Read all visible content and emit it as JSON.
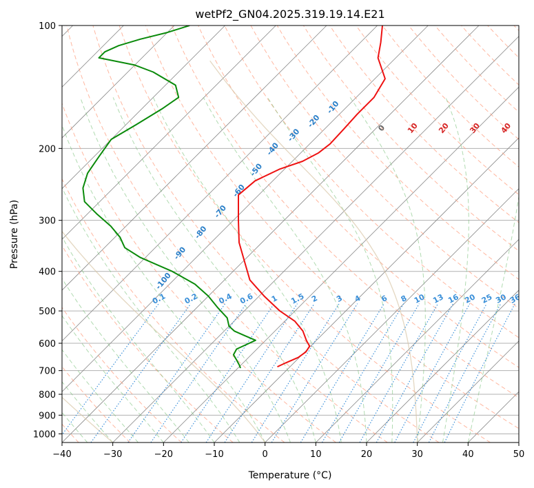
{
  "chart_data": {
    "type": "skewt",
    "title": "wetPf2_GN04.2025.319.19.14.E21",
    "xlabel": "Temperature (°C)",
    "ylabel": "Pressure (hPa)",
    "xlim": [
      -40,
      50
    ],
    "ylim": [
      1050,
      100
    ],
    "x_ticks": [
      -40,
      -30,
      -20,
      -10,
      0,
      10,
      20,
      30,
      40,
      50
    ],
    "x_tick_labels": [
      "−40",
      "−30",
      "−20",
      "−10",
      "0",
      "10",
      "20",
      "30",
      "40",
      "50"
    ],
    "y_ticks": [
      100,
      200,
      300,
      400,
      500,
      600,
      700,
      800,
      900,
      1000
    ],
    "y_tick_labels": [
      "100",
      "200",
      "300",
      "400",
      "500",
      "600",
      "700",
      "800",
      "900",
      "1000"
    ],
    "grid": true,
    "colors": {
      "temperature": "#ee1111",
      "dewpoint": "#0a8a0a",
      "dry_adiabat": "#ff9f80",
      "moist_adiabat": "#7cc27c",
      "mixing_ratio": "#3a8fd8",
      "isotherm": "#888888",
      "isobar": "#b0b0b0",
      "theta_e_curve": "#d8c6a6",
      "cold_label": "#2a7fc8",
      "warm_label": "#d62424",
      "zero_label": "#666666"
    },
    "temperature": {
      "name": "Temperature",
      "pressure": [
        100,
        110,
        120,
        135,
        150,
        165,
        180,
        195,
        205,
        215,
        225,
        240,
        260,
        300,
        340,
        380,
        420,
        460,
        500,
        530,
        560,
        590,
        610,
        630,
        650,
        670,
        685
      ],
      "values": [
        -59,
        -56,
        -53.5,
        -48,
        -46.5,
        -46.5,
        -46.2,
        -46,
        -46.5,
        -48,
        -51,
        -53.5,
        -54,
        -49,
        -44.5,
        -39.5,
        -35,
        -29,
        -23,
        -18,
        -14.5,
        -12,
        -10.2,
        -9.8,
        -10.2,
        -11.6,
        -12.5
      ]
    },
    "dewpoint": {
      "name": "Dewpoint",
      "pressure": [
        100,
        104,
        108,
        112,
        116,
        120,
        125,
        130,
        140,
        150,
        160,
        175,
        190,
        210,
        230,
        250,
        270,
        290,
        310,
        330,
        350,
        370,
        400,
        430,
        460,
        490,
        520,
        545,
        560,
        575,
        590,
        605,
        620,
        640,
        660,
        680,
        690
      ],
      "values": [
        -97,
        -100,
        -104,
        -107,
        -108.5,
        -108.5,
        -100,
        -95,
        -88,
        -85,
        -86,
        -88,
        -90,
        -89,
        -88,
        -86,
        -83,
        -78,
        -73,
        -69,
        -66,
        -61,
        -52,
        -45,
        -40,
        -36,
        -32,
        -30,
        -28,
        -25,
        -22,
        -23,
        -24,
        -23.5,
        -21.8,
        -20.2,
        -19.5
      ]
    },
    "mixing_ratio_labels": [
      "0.1",
      "0.2",
      "0.4",
      "0.6",
      "1",
      "1.5",
      "2",
      "3",
      "4",
      "6",
      "8",
      "10",
      "13",
      "16",
      "20",
      "25",
      "30",
      "36"
    ],
    "dry_adiabat_labels": [
      "-100",
      "-90",
      "-80",
      "-70",
      "-60",
      "-50",
      "-40",
      "-30",
      "-20",
      "-10",
      "0",
      "10",
      "20",
      "30",
      "40"
    ]
  }
}
